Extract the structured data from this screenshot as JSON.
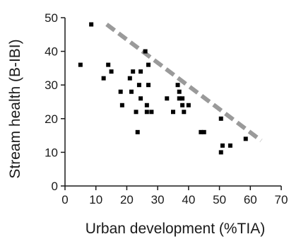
{
  "chart_data": {
    "type": "scatter",
    "xlabel": "Urban development (%TIA)",
    "ylabel": "Stream health (B-IBI)",
    "xlim": [
      0,
      70
    ],
    "ylim": [
      0,
      50
    ],
    "x_ticks": [
      0,
      10,
      20,
      30,
      40,
      50,
      60,
      70
    ],
    "y_ticks": [
      0,
      10,
      20,
      30,
      40,
      50
    ],
    "grid": false,
    "points": [
      {
        "x": 5,
        "y": 36
      },
      {
        "x": 8.5,
        "y": 48
      },
      {
        "x": 12.5,
        "y": 32
      },
      {
        "x": 14,
        "y": 36
      },
      {
        "x": 15,
        "y": 34
      },
      {
        "x": 18,
        "y": 28
      },
      {
        "x": 18.5,
        "y": 24
      },
      {
        "x": 21,
        "y": 32
      },
      {
        "x": 21.5,
        "y": 28
      },
      {
        "x": 22,
        "y": 34
      },
      {
        "x": 23,
        "y": 22
      },
      {
        "x": 23.5,
        "y": 16
      },
      {
        "x": 24,
        "y": 30
      },
      {
        "x": 24.5,
        "y": 34
      },
      {
        "x": 24.5,
        "y": 26
      },
      {
        "x": 26,
        "y": 40
      },
      {
        "x": 26.5,
        "y": 24
      },
      {
        "x": 26.5,
        "y": 22
      },
      {
        "x": 27,
        "y": 36
      },
      {
        "x": 27,
        "y": 30
      },
      {
        "x": 28,
        "y": 22
      },
      {
        "x": 33,
        "y": 26
      },
      {
        "x": 35,
        "y": 22
      },
      {
        "x": 36.5,
        "y": 30
      },
      {
        "x": 37,
        "y": 26
      },
      {
        "x": 37,
        "y": 28
      },
      {
        "x": 38,
        "y": 26
      },
      {
        "x": 38,
        "y": 24
      },
      {
        "x": 38.5,
        "y": 22
      },
      {
        "x": 40,
        "y": 24
      },
      {
        "x": 44,
        "y": 16
      },
      {
        "x": 45,
        "y": 16
      },
      {
        "x": 50.5,
        "y": 20
      },
      {
        "x": 51,
        "y": 12
      },
      {
        "x": 50.5,
        "y": 10
      },
      {
        "x": 53.5,
        "y": 12
      },
      {
        "x": 58.5,
        "y": 14
      }
    ],
    "trend_line": {
      "style": "dashed",
      "color": "#9a9a9a",
      "x": [
        13.5,
        63.5
      ],
      "y": [
        48,
        13.5
      ]
    },
    "marker_color": "#000000",
    "axis_color": "#1a1a1a"
  }
}
